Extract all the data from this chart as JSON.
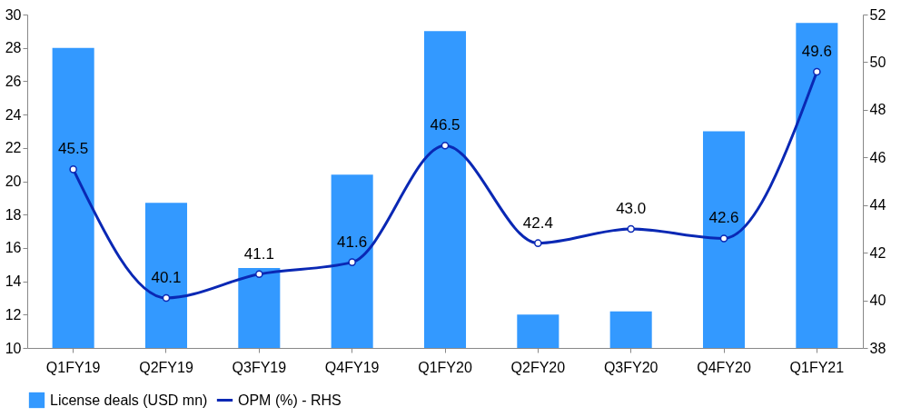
{
  "chart_data": {
    "type": "bar",
    "categories": [
      "Q1FY19",
      "Q2FY19",
      "Q3FY19",
      "Q4FY19",
      "Q1FY20",
      "Q2FY20",
      "Q3FY20",
      "Q4FY20",
      "Q1FY21"
    ],
    "series": [
      {
        "name": "License deals (USD mn)",
        "color": "#3399ff",
        "values": [
          28.0,
          18.7,
          14.8,
          20.4,
          29.0,
          12.0,
          12.2,
          23.0,
          29.5
        ]
      },
      {
        "name": "OPM (%) - RHS",
        "type": "line",
        "axis": "y2",
        "color": "#0a28b4",
        "marker": "circle",
        "values": [
          45.5,
          40.1,
          41.1,
          41.6,
          46.5,
          42.4,
          43.0,
          42.6,
          49.6
        ],
        "value_labels": [
          "45.5",
          "40.1",
          "41.1",
          "41.6",
          "46.5",
          "42.4",
          "43.0",
          "42.6",
          "49.6"
        ]
      }
    ],
    "ylim": [
      10,
      30
    ],
    "yticks": [
      10,
      12,
      14,
      16,
      18,
      20,
      22,
      24,
      26,
      28,
      30
    ],
    "y2lim": [
      38,
      52
    ],
    "y2ticks": [
      38,
      40,
      42,
      44,
      46,
      48,
      50,
      52
    ],
    "grid": false,
    "legend": "bottom"
  }
}
